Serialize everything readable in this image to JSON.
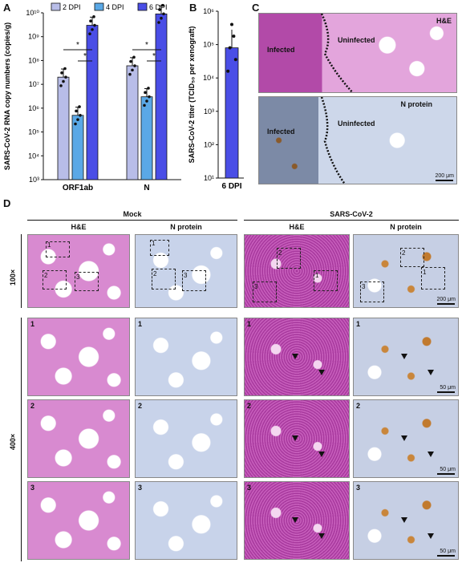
{
  "panels": {
    "A": "A",
    "B": "B",
    "C": "C",
    "D": "D"
  },
  "chart_data": [
    {
      "type": "bar",
      "panel": "A",
      "ylabel": "SARS-CoV-2 RNA copy numbers (copies/g)",
      "yscale": "log",
      "ylim": [
        1000,
        10000000000
      ],
      "ytick_labels": [
        "10³",
        "10⁴",
        "10⁵",
        "10⁶",
        "10⁷",
        "10⁸",
        "10⁹",
        "10¹⁰"
      ],
      "categories": [
        "ORF1ab",
        "N"
      ],
      "series": [
        {
          "name": "2 DPI",
          "color": "#b8bde8",
          "values": [
            20000000,
            60000000
          ]
        },
        {
          "name": "4 DPI",
          "color": "#5aa8e6",
          "values": [
            500000,
            3000000
          ]
        },
        {
          "name": "6 DPI",
          "color": "#4a4ee6",
          "values": [
            3000000000,
            9000000000
          ]
        }
      ],
      "significance": [
        "*",
        "*",
        "*",
        "*"
      ]
    },
    {
      "type": "scatter",
      "panel": "B",
      "ylabel": "SARS-CoV-2 titer (TCID₅₀ per xenograft)",
      "yscale": "log",
      "ylim": [
        10,
        1000000
      ],
      "ytick_labels": [
        "10¹",
        "10²",
        "10³",
        "10⁴",
        "10⁵",
        "10⁶"
      ],
      "categories": [
        "6 DPI"
      ],
      "bar_value": 80000,
      "color": "#4a4ee6"
    }
  ],
  "panel_c": {
    "he_label": "H&E",
    "np_label": "N protein",
    "infected": "Infected",
    "uninfected": "Uninfected",
    "scale": "200 μm"
  },
  "panel_d": {
    "group_mock": "Mock",
    "group_cov": "SARS-CoV-2",
    "col_he": "H&E",
    "col_np": "N protein",
    "row_100": "100×",
    "row_400": "400×",
    "nums": [
      "1",
      "2",
      "3"
    ],
    "scale_200": "200 μm",
    "scale_50": "50 μm"
  }
}
